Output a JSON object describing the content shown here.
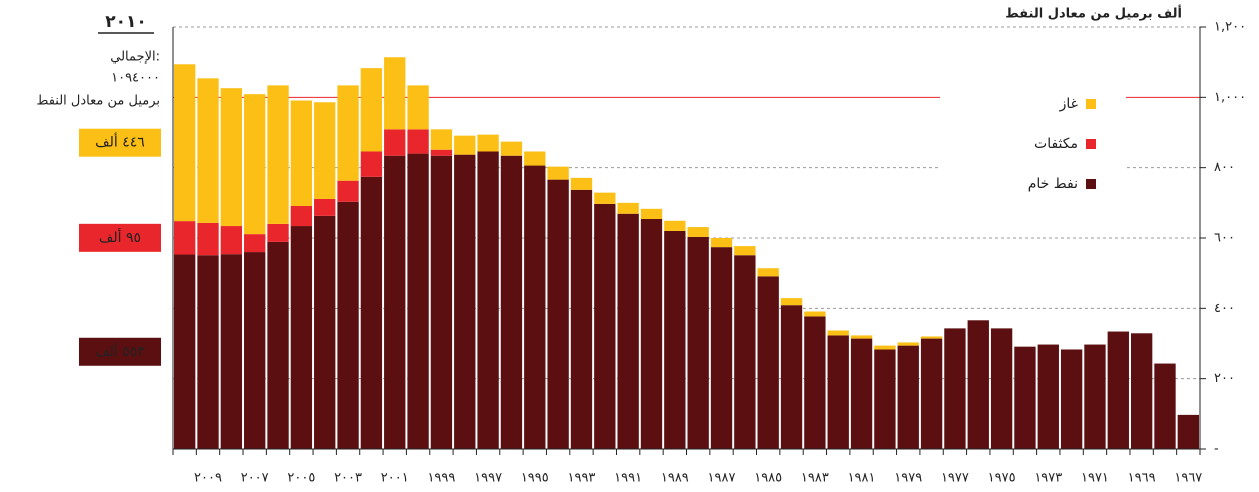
{
  "chart_data": {
    "type": "stacked_bar",
    "y_axis_label": "ألف برميل من معادل النفط",
    "categories": [
      null,
      "٢٠٠٩",
      null,
      "٢٠٠٧",
      null,
      "٢٠٠٥",
      null,
      "٢٠٠٣",
      null,
      "٢٠٠١",
      null,
      "١٩٩٩",
      null,
      "١٩٩٧",
      null,
      "١٩٩٥",
      null,
      "١٩٩٣",
      null,
      "١٩٩١",
      null,
      "١٩٨٩",
      null,
      "١٩٨٧",
      null,
      "١٩٨٥",
      null,
      "١٩٨٣",
      null,
      "١٩٨١",
      null,
      "١٩٧٩",
      null,
      "١٩٧٧",
      null,
      "١٩٧٥",
      null,
      "١٩٧٣",
      null,
      "١٩٧١",
      null,
      "١٩٦٩",
      null,
      "١٩٦٧"
    ],
    "series": [
      {
        "name": "نفط خام",
        "color": "#5c0f10",
        "values": [
          553,
          551,
          554,
          560,
          589,
          634,
          663,
          703,
          774,
          834,
          840,
          834,
          837,
          846,
          834,
          806,
          766,
          737,
          697,
          669,
          654,
          620,
          603,
          574,
          551,
          491,
          409,
          377,
          323,
          314,
          283,
          294,
          314,
          343,
          366,
          343,
          291,
          297,
          283,
          297,
          334,
          329,
          243,
          97
        ]
      },
      {
        "name": "مكثفات",
        "color": "#e8262c",
        "values": [
          95,
          92,
          80,
          51,
          51,
          57,
          48,
          60,
          72,
          75,
          69,
          17,
          0,
          0,
          0,
          0,
          0,
          0,
          0,
          0,
          0,
          0,
          0,
          0,
          0,
          0,
          0,
          0,
          0,
          0,
          0,
          0,
          0,
          0,
          0,
          0,
          0,
          0,
          0,
          0,
          0,
          0,
          0,
          0
        ]
      },
      {
        "name": "غاز",
        "color": "#fbbf16",
        "values": [
          446,
          411,
          392,
          398,
          394,
          300,
          275,
          271,
          237,
          205,
          125,
          58,
          54,
          48,
          40,
          40,
          37,
          34,
          32,
          31,
          29,
          29,
          28,
          26,
          26,
          23,
          20,
          14,
          14,
          9,
          11,
          9,
          6,
          0,
          0,
          0,
          0,
          0,
          0,
          0,
          0,
          0,
          0,
          0
        ]
      }
    ],
    "value_labels": [
      "٥٥٣ ألف",
      "٩٥ ألف",
      "٤٤٦ ألف"
    ],
    "highlight": {
      "year": "٢٠١٠",
      "total_label": "الإجمالي:",
      "total": "١٠٩٤٠٠٠",
      "unit": "برميل من معادل النفط"
    },
    "ylim": [
      0,
      1200
    ],
    "yticks": [
      {
        "value": 0,
        "label": "-"
      },
      {
        "value": 200,
        "label": "٢٠٠"
      },
      {
        "value": 400,
        "label": "٤٠٠"
      },
      {
        "value": 600,
        "label": "٦٠٠"
      },
      {
        "value": 800,
        "label": "٨٠٠"
      },
      {
        "value": 1000,
        "label": "١,٠٠٠"
      },
      {
        "value": 1200,
        "label": "١,٢٠٠"
      }
    ],
    "highlight_line": {
      "value": 1000,
      "color": "#e8262c"
    },
    "grid": true,
    "legend": "upper right"
  }
}
